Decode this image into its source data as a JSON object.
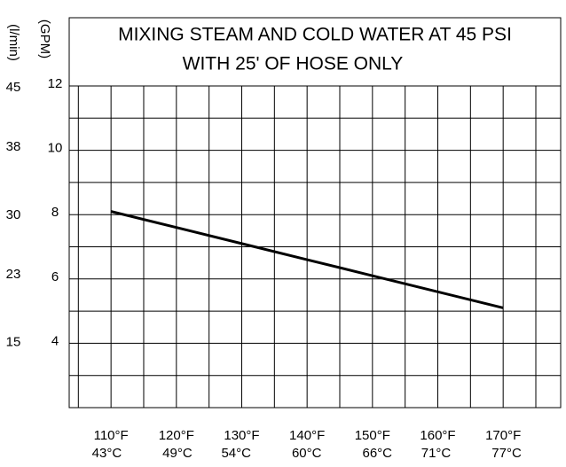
{
  "chart_data": {
    "type": "line",
    "title_lines": [
      "MIXING STEAM AND COLD WATER AT 45 PSI",
      "WITH 25' OF HOSE ONLY"
    ],
    "y_label": "(GPM)",
    "y2_label": "(l/min)",
    "x": [
      110,
      120,
      130,
      140,
      150,
      160,
      170
    ],
    "series": [
      {
        "name": "GPM",
        "color": "#000000",
        "values": [
          8.1,
          7.6,
          7.1,
          6.6,
          6.1,
          5.6,
          5.1
        ]
      }
    ],
    "xlim": [
      103.6,
      178.8
    ],
    "xticks": [
      {
        "value": 110,
        "label": "110°F"
      },
      {
        "value": 120,
        "label": "120°F"
      },
      {
        "value": 130,
        "label": "130°F"
      },
      {
        "value": 140,
        "label": "140°F"
      },
      {
        "value": 150,
        "label": "150°F"
      },
      {
        "value": 160,
        "label": "160°F"
      },
      {
        "value": 170,
        "label": "170°F"
      }
    ],
    "minor_xticks": [
      105,
      115,
      125,
      135,
      145,
      155,
      165,
      175
    ],
    "x2lim": [
      39.8,
      81.6
    ],
    "x2ticks": [
      {
        "value": 43,
        "label": "43°C"
      },
      {
        "value": 49,
        "label": "49°C"
      },
      {
        "value": 54,
        "label": "54°C"
      },
      {
        "value": 60,
        "label": "60°C"
      },
      {
        "value": 66,
        "label": "66°C"
      },
      {
        "value": 71,
        "label": "71°C"
      },
      {
        "value": 77,
        "label": "77°C"
      }
    ],
    "ylim": [
      2,
      12
    ],
    "yticks": [
      4,
      6,
      8,
      10,
      12
    ],
    "minor_yticks": [
      3,
      5,
      7,
      9,
      11
    ],
    "y2lim": [
      7.57,
      45.42
    ],
    "y2ticks": [
      15,
      23,
      30,
      38,
      45
    ],
    "grid": true
  }
}
